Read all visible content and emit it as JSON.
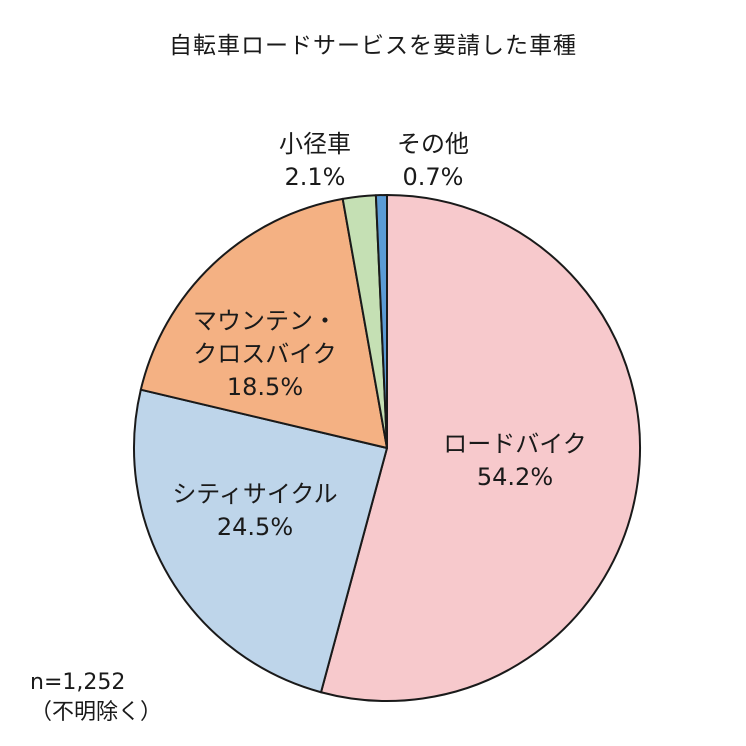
{
  "chart_data": {
    "type": "pie",
    "title": "自転車ロードサービスを要請した車種",
    "slices": [
      {
        "label": "ロードバイク",
        "value": 54.2,
        "value_label": "54.2%",
        "color": "#f7c9cc"
      },
      {
        "label": "シティサイクル",
        "value": 24.5,
        "value_label": "24.5%",
        "color": "#bed5ea"
      },
      {
        "label": "マウンテン・クロスバイク",
        "label_lines": [
          "マウンテン・",
          "クロスバイク"
        ],
        "value": 18.5,
        "value_label": "18.5%",
        "color": "#f4b183"
      },
      {
        "label": "小径車",
        "value": 2.1,
        "value_label": "2.1%",
        "color": "#c5e0b4"
      },
      {
        "label": "その他",
        "value": 0.7,
        "value_label": "0.7%",
        "color": "#5b9bd5"
      }
    ],
    "start": "12 o'clock",
    "direction": "clockwise",
    "note": {
      "n": "n=1,252",
      "exclusion": "（不明除く）"
    }
  }
}
